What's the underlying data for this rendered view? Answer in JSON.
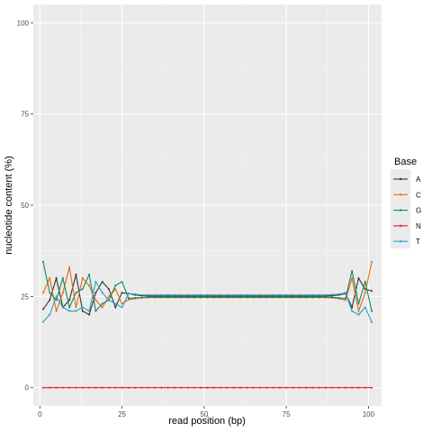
{
  "chart_data": {
    "type": "line",
    "xlabel": "read position (bp)",
    "ylabel": "nucleotide content (%)",
    "xlim": [
      -2,
      104
    ],
    "ylim": [
      -5,
      105
    ],
    "x_ticks": [
      0,
      25,
      50,
      75,
      100
    ],
    "y_ticks": [
      0,
      25,
      50,
      75,
      100
    ],
    "grid": true,
    "background": "#ebebeb",
    "legend": {
      "title": "Base",
      "placement": "right"
    },
    "positions": {
      "start": 1,
      "end": 101,
      "step": 2
    },
    "series": [
      {
        "name": "A",
        "color": "#333333",
        "values": [
          21.5,
          24,
          30,
          22,
          24,
          31,
          21,
          20,
          26,
          29,
          27,
          22,
          26,
          25.8,
          25.4,
          25.2,
          25.1,
          25.1,
          25.1,
          25.1,
          25.1,
          25.1,
          25.1,
          25.1,
          25.1,
          25.1,
          25.1,
          25.1,
          25.1,
          25.1,
          25.1,
          25.1,
          25.1,
          25.1,
          25.1,
          25.1,
          25.1,
          25.1,
          25.1,
          25.1,
          25.1,
          25.1,
          25.1,
          25.1,
          25.2,
          25.4,
          25.8,
          22,
          30,
          27,
          26.5
        ]
      },
      {
        "name": "C",
        "color": "#e66a12",
        "values": [
          26,
          30,
          21,
          26,
          33,
          22,
          30,
          28,
          24,
          22,
          25,
          27,
          23,
          24.1,
          24.4,
          24.6,
          24.7,
          24.7,
          24.7,
          24.7,
          24.7,
          24.7,
          24.7,
          24.7,
          24.7,
          24.7,
          24.7,
          24.7,
          24.7,
          24.7,
          24.7,
          24.7,
          24.7,
          24.7,
          24.7,
          24.7,
          24.7,
          24.7,
          24.7,
          24.7,
          24.7,
          24.7,
          24.7,
          24.7,
          24.6,
          24.4,
          24.0,
          30,
          21,
          26,
          34.5
        ]
      },
      {
        "name": "G",
        "color": "#138a5f",
        "values": [
          34.5,
          26,
          24,
          30,
          22,
          26,
          27,
          31,
          21,
          23,
          24,
          28,
          29,
          24.5,
          24.6,
          24.7,
          24.8,
          24.8,
          24.8,
          24.8,
          24.8,
          24.8,
          24.8,
          24.8,
          24.8,
          24.8,
          24.8,
          24.8,
          24.8,
          24.8,
          24.8,
          24.8,
          24.8,
          24.8,
          24.8,
          24.8,
          24.8,
          24.8,
          24.8,
          24.8,
          24.8,
          24.8,
          24.8,
          24.8,
          24.8,
          24.6,
          24.4,
          32,
          23,
          29,
          21
        ]
      },
      {
        "name": "N",
        "color": "#e41a1c",
        "values": [
          0,
          0,
          0,
          0,
          0,
          0,
          0,
          0,
          0,
          0,
          0,
          0,
          0,
          0,
          0,
          0,
          0,
          0,
          0,
          0,
          0,
          0,
          0,
          0,
          0,
          0,
          0,
          0,
          0,
          0,
          0,
          0,
          0,
          0,
          0,
          0,
          0,
          0,
          0,
          0,
          0,
          0,
          0,
          0,
          0,
          0,
          0,
          0,
          0,
          0,
          0
        ]
      },
      {
        "name": "T",
        "color": "#2b9fc7",
        "values": [
          18,
          20,
          25,
          22,
          21,
          21,
          22,
          21,
          29,
          26,
          24,
          23,
          22,
          25.8,
          25.6,
          25.4,
          25.4,
          25.4,
          25.4,
          25.4,
          25.4,
          25.4,
          25.4,
          25.4,
          25.4,
          25.4,
          25.4,
          25.4,
          25.4,
          25.4,
          25.4,
          25.4,
          25.4,
          25.4,
          25.4,
          25.4,
          25.4,
          25.4,
          25.4,
          25.4,
          25.4,
          25.4,
          25.4,
          25.4,
          25.5,
          25.6,
          26,
          21,
          20,
          22,
          18
        ]
      }
    ]
  }
}
